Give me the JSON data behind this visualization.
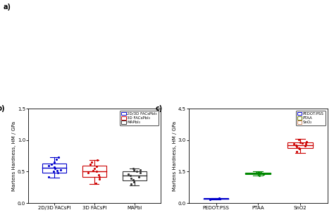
{
  "panel_b": {
    "categories": [
      "2D/3D FACsPl",
      "3D FACsPl",
      "MAPbI"
    ],
    "ylabel": "Martens Hardness, HM / GPa",
    "ylim": [
      0.0,
      1.5
    ],
    "yticks": [
      0.0,
      0.5,
      1.0,
      1.5
    ],
    "colors": [
      "#0000cc",
      "#cc0000",
      "#333333"
    ],
    "legend_labels": [
      "2D/3D FACsPbI₃",
      "3D FACsPbI₃",
      "MAPbI₃"
    ],
    "legend_colors": [
      "#0000cc",
      "#cc0000",
      "#333333"
    ],
    "boxes": [
      {
        "q1": 0.48,
        "median": 0.56,
        "q3": 0.63,
        "whisker_low": 0.4,
        "whisker_high": 0.73,
        "points": [
          0.42,
          0.48,
          0.5,
          0.52,
          0.53,
          0.55,
          0.57,
          0.6,
          0.62,
          0.65,
          0.7,
          0.73
        ]
      },
      {
        "q1": 0.42,
        "median": 0.5,
        "q3": 0.6,
        "whisker_low": 0.3,
        "whisker_high": 0.68,
        "points": [
          0.32,
          0.38,
          0.42,
          0.45,
          0.48,
          0.5,
          0.52,
          0.55,
          0.58,
          0.62,
          0.65,
          0.68
        ]
      },
      {
        "q1": 0.36,
        "median": 0.44,
        "q3": 0.5,
        "whisker_low": 0.28,
        "whisker_high": 0.55,
        "points": [
          0.3,
          0.34,
          0.37,
          0.39,
          0.42,
          0.44,
          0.46,
          0.48,
          0.5,
          0.52,
          0.53,
          0.55
        ]
      }
    ]
  },
  "panel_c": {
    "categories": [
      "PEDOT:PSS",
      "PTAA",
      "SnO2"
    ],
    "ylabel": "Martens Hardness, HM / GPa",
    "ylim": [
      0.0,
      4.5
    ],
    "yticks": [
      0.0,
      1.5,
      3.0,
      4.5
    ],
    "colors": [
      "#0000cc",
      "#008800",
      "#cc0000"
    ],
    "legend_labels": [
      "PEDOT:PSS",
      "PTAA",
      "SnO₂"
    ],
    "legend_colors": [
      "#0000cc",
      "#667700",
      "#cc8866"
    ],
    "boxes": [
      {
        "q1": 0.195,
        "median": 0.215,
        "q3": 0.235,
        "whisker_low": 0.175,
        "whisker_high": 0.255,
        "points": [
          0.18,
          0.2,
          0.215,
          0.23
        ]
      },
      {
        "q1": 1.37,
        "median": 1.41,
        "q3": 1.46,
        "whisker_low": 1.3,
        "whisker_high": 1.5,
        "points": [
          1.32,
          1.37,
          1.39,
          1.41,
          1.43,
          1.44,
          1.46,
          1.49
        ]
      },
      {
        "q1": 2.62,
        "median": 2.76,
        "q3": 2.88,
        "whisker_low": 2.38,
        "whisker_high": 3.05,
        "points": [
          2.45,
          2.58,
          2.63,
          2.68,
          2.73,
          2.77,
          2.81,
          2.84,
          2.87,
          2.9,
          2.94,
          3.03
        ]
      }
    ]
  },
  "fig_width": 4.74,
  "fig_height": 3.05,
  "dpi": 100
}
